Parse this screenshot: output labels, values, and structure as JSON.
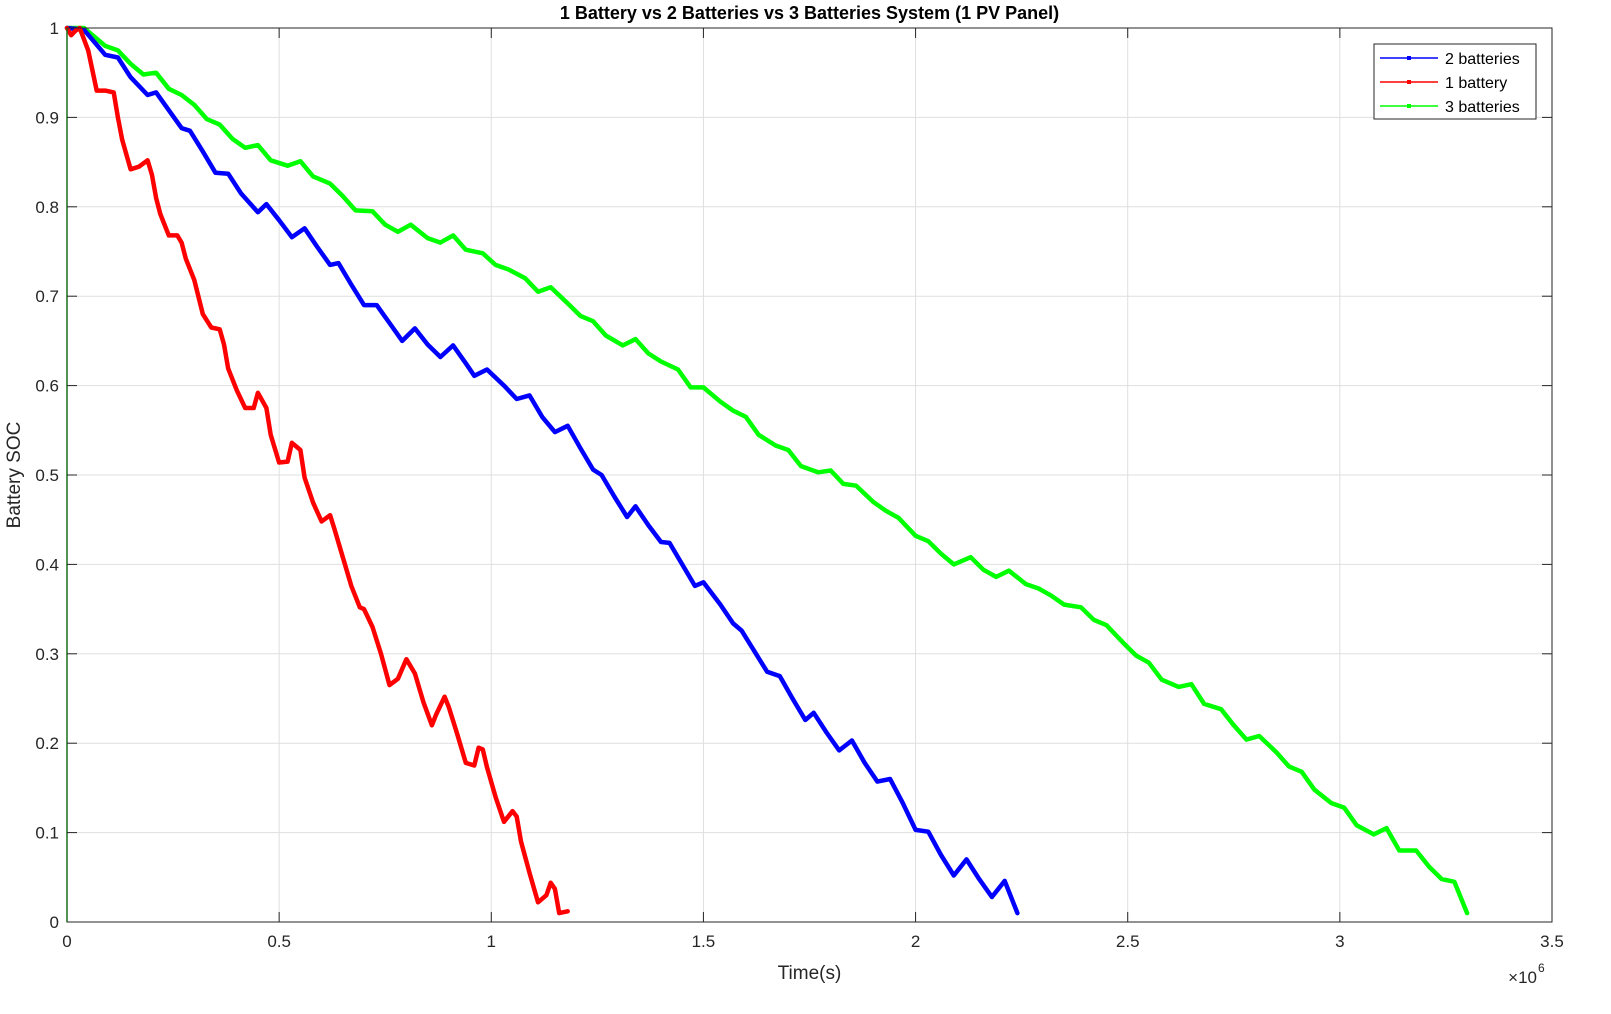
{
  "chart_data": {
    "type": "line",
    "title": "1 Battery vs 2 Batteries vs 3 Batteries System (1 PV Panel)",
    "xlabel": "Time(s)",
    "ylabel": "Battery SOC",
    "x_multiplier": "×10",
    "x_exponent": "6",
    "xlim": [
      0,
      3.5
    ],
    "ylim": [
      0,
      1
    ],
    "x_ticks": [
      0,
      0.5,
      1,
      1.5,
      2,
      2.5,
      3,
      3.5
    ],
    "x_tick_labels": [
      "0",
      "0.5",
      "1",
      "1.5",
      "2",
      "2.5",
      "3",
      "3.5"
    ],
    "y_ticks": [
      0,
      0.1,
      0.2,
      0.3,
      0.4,
      0.5,
      0.6,
      0.7,
      0.8,
      0.9,
      1
    ],
    "y_tick_labels": [
      "0",
      "0.1",
      "0.2",
      "0.3",
      "0.4",
      "0.5",
      "0.6",
      "0.7",
      "0.8",
      "0.9",
      "1"
    ],
    "grid": true,
    "legend_position": "top-right",
    "series": [
      {
        "name": "2 batteries",
        "color": "#0000ff",
        "x": [
          0.0,
          0.04,
          0.09,
          0.12,
          0.15,
          0.19,
          0.21,
          0.24,
          0.27,
          0.29,
          0.32,
          0.35,
          0.38,
          0.41,
          0.45,
          0.47,
          0.5,
          0.53,
          0.56,
          0.59,
          0.62,
          0.64,
          0.67,
          0.7,
          0.73,
          0.76,
          0.79,
          0.82,
          0.85,
          0.88,
          0.91,
          0.94,
          0.96,
          0.99,
          1.03,
          1.06,
          1.09,
          1.12,
          1.15,
          1.18,
          1.21,
          1.24,
          1.26,
          1.29,
          1.32,
          1.34,
          1.37,
          1.4,
          1.42,
          1.45,
          1.48,
          1.5,
          1.54,
          1.57,
          1.59,
          1.62,
          1.65,
          1.68,
          1.71,
          1.74,
          1.76,
          1.79,
          1.82,
          1.85,
          1.88,
          1.91,
          1.94,
          1.97,
          2.0,
          2.03,
          2.06,
          2.09,
          2.12,
          2.15,
          2.18,
          2.21,
          2.24
        ],
        "y": [
          1.0,
          0.998,
          0.97,
          0.967,
          0.945,
          0.925,
          0.928,
          0.908,
          0.888,
          0.885,
          0.862,
          0.838,
          0.837,
          0.815,
          0.794,
          0.803,
          0.785,
          0.766,
          0.776,
          0.755,
          0.735,
          0.737,
          0.713,
          0.69,
          0.69,
          0.67,
          0.65,
          0.664,
          0.646,
          0.632,
          0.645,
          0.625,
          0.611,
          0.618,
          0.6,
          0.585,
          0.589,
          0.565,
          0.548,
          0.555,
          0.53,
          0.506,
          0.5,
          0.476,
          0.453,
          0.465,
          0.444,
          0.425,
          0.424,
          0.4,
          0.376,
          0.38,
          0.355,
          0.334,
          0.326,
          0.303,
          0.28,
          0.275,
          0.25,
          0.226,
          0.234,
          0.212,
          0.192,
          0.203,
          0.178,
          0.157,
          0.16,
          0.133,
          0.103,
          0.101,
          0.075,
          0.052,
          0.07,
          0.048,
          0.028,
          0.046,
          0.01
        ]
      },
      {
        "name": "1 battery",
        "color": "#ff0000",
        "x": [
          0.0,
          0.01,
          0.02,
          0.03,
          0.05,
          0.07,
          0.09,
          0.11,
          0.12,
          0.13,
          0.15,
          0.17,
          0.19,
          0.2,
          0.21,
          0.22,
          0.24,
          0.26,
          0.27,
          0.28,
          0.3,
          0.32,
          0.34,
          0.36,
          0.37,
          0.38,
          0.4,
          0.42,
          0.44,
          0.45,
          0.47,
          0.48,
          0.5,
          0.52,
          0.53,
          0.55,
          0.56,
          0.58,
          0.6,
          0.62,
          0.63,
          0.65,
          0.67,
          0.69,
          0.7,
          0.72,
          0.74,
          0.76,
          0.78,
          0.8,
          0.82,
          0.84,
          0.86,
          0.87,
          0.89,
          0.9,
          0.92,
          0.94,
          0.96,
          0.97,
          0.98,
          0.99,
          1.01,
          1.03,
          1.05,
          1.06,
          1.07,
          1.09,
          1.11,
          1.13,
          1.14,
          1.15,
          1.16,
          1.18
        ],
        "y": [
          1.0,
          0.992,
          0.997,
          1.0,
          0.975,
          0.93,
          0.93,
          0.928,
          0.9,
          0.875,
          0.842,
          0.845,
          0.852,
          0.836,
          0.81,
          0.792,
          0.768,
          0.768,
          0.76,
          0.742,
          0.718,
          0.68,
          0.665,
          0.663,
          0.646,
          0.619,
          0.595,
          0.575,
          0.575,
          0.592,
          0.575,
          0.545,
          0.514,
          0.515,
          0.536,
          0.528,
          0.497,
          0.469,
          0.448,
          0.455,
          0.44,
          0.408,
          0.376,
          0.352,
          0.35,
          0.33,
          0.3,
          0.265,
          0.272,
          0.294,
          0.278,
          0.246,
          0.22,
          0.232,
          0.252,
          0.24,
          0.21,
          0.178,
          0.175,
          0.195,
          0.193,
          0.173,
          0.14,
          0.112,
          0.124,
          0.118,
          0.09,
          0.055,
          0.022,
          0.03,
          0.044,
          0.037,
          0.01,
          0.012
        ]
      },
      {
        "name": "3 batteries",
        "color": "#00ff00",
        "x": [
          0.0,
          0.04,
          0.09,
          0.12,
          0.15,
          0.18,
          0.21,
          0.24,
          0.27,
          0.3,
          0.33,
          0.36,
          0.39,
          0.42,
          0.45,
          0.48,
          0.52,
          0.55,
          0.58,
          0.62,
          0.65,
          0.68,
          0.72,
          0.75,
          0.78,
          0.81,
          0.85,
          0.88,
          0.91,
          0.94,
          0.98,
          1.01,
          1.04,
          1.08,
          1.11,
          1.14,
          1.18,
          1.21,
          1.24,
          1.27,
          1.31,
          1.34,
          1.37,
          1.4,
          1.44,
          1.47,
          1.5,
          1.54,
          1.57,
          1.6,
          1.63,
          1.67,
          1.7,
          1.73,
          1.77,
          1.8,
          1.83,
          1.86,
          1.9,
          1.93,
          1.96,
          2.0,
          2.03,
          2.06,
          2.09,
          2.13,
          2.16,
          2.19,
          2.22,
          2.26,
          2.29,
          2.32,
          2.35,
          2.39,
          2.42,
          2.45,
          2.49,
          2.52,
          2.55,
          2.58,
          2.62,
          2.65,
          2.68,
          2.72,
          2.75,
          2.78,
          2.81,
          2.85,
          2.88,
          2.91,
          2.94,
          2.98,
          3.01,
          3.04,
          3.08,
          3.11,
          3.14,
          3.18,
          3.21,
          3.24,
          3.27,
          3.3
        ],
        "y": [
          1.0,
          1.0,
          0.98,
          0.975,
          0.96,
          0.948,
          0.95,
          0.932,
          0.925,
          0.914,
          0.898,
          0.892,
          0.876,
          0.866,
          0.869,
          0.852,
          0.846,
          0.851,
          0.834,
          0.826,
          0.812,
          0.796,
          0.795,
          0.78,
          0.772,
          0.78,
          0.765,
          0.76,
          0.768,
          0.752,
          0.748,
          0.735,
          0.73,
          0.72,
          0.705,
          0.71,
          0.692,
          0.678,
          0.672,
          0.656,
          0.645,
          0.652,
          0.636,
          0.627,
          0.618,
          0.598,
          0.598,
          0.582,
          0.572,
          0.565,
          0.545,
          0.533,
          0.528,
          0.51,
          0.503,
          0.505,
          0.49,
          0.488,
          0.47,
          0.46,
          0.452,
          0.432,
          0.426,
          0.412,
          0.4,
          0.408,
          0.394,
          0.386,
          0.393,
          0.378,
          0.373,
          0.365,
          0.355,
          0.352,
          0.338,
          0.332,
          0.312,
          0.298,
          0.29,
          0.271,
          0.263,
          0.266,
          0.244,
          0.238,
          0.22,
          0.204,
          0.208,
          0.19,
          0.174,
          0.168,
          0.148,
          0.133,
          0.128,
          0.108,
          0.098,
          0.105,
          0.08,
          0.08,
          0.062,
          0.048,
          0.045,
          0.01
        ]
      }
    ]
  }
}
